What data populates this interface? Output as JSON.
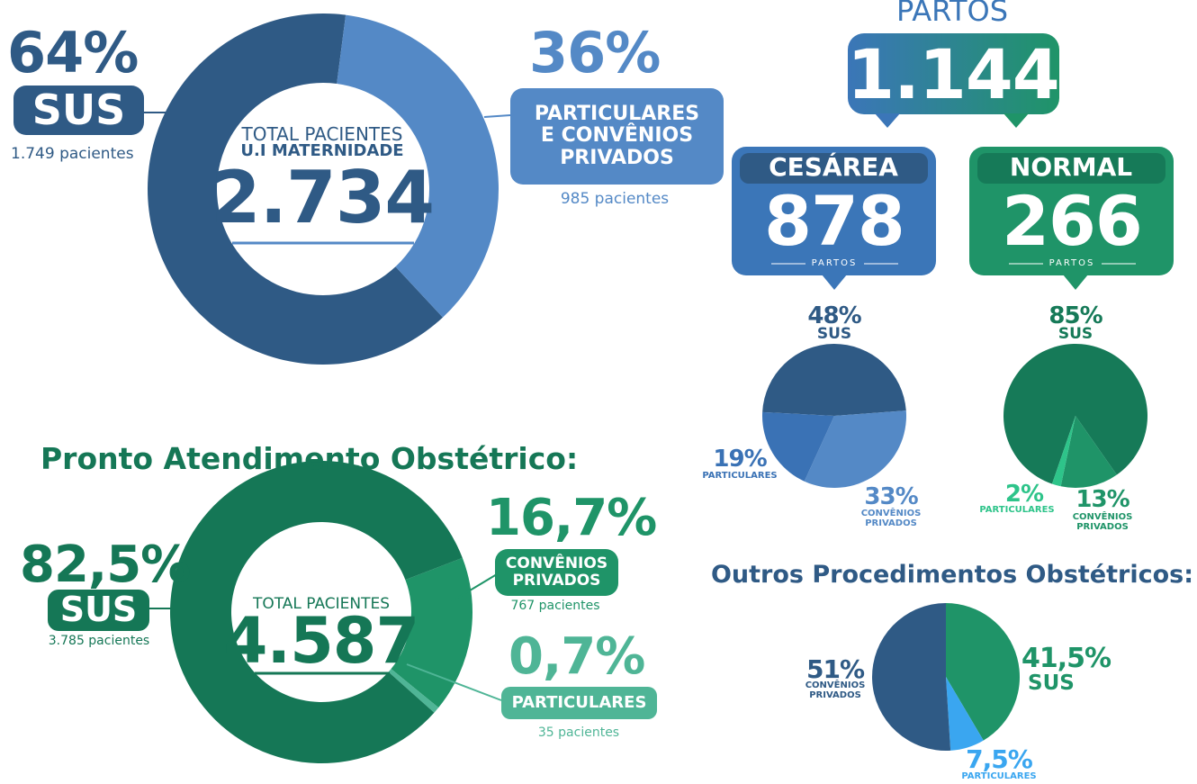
{
  "partos": {
    "title": "PARTOS",
    "total": "1.144",
    "cesarea": {
      "label": "CESÁREA",
      "value": "878",
      "unit": "PARTOS"
    },
    "normal": {
      "label": "NORMAL",
      "value": "266",
      "unit": "PARTOS"
    }
  },
  "chart_data": [
    {
      "type": "donut",
      "center_title": "TOTAL PACIENTES",
      "center_subtitle": "U.I MATERNIDADE",
      "total": "2.734",
      "categories": [
        "SUS",
        "PARTICULARES E CONVÊNIOS PRIVADOS"
      ],
      "values": [
        64,
        36
      ],
      "value_labels": [
        "64%",
        "36%"
      ],
      "patient_labels": [
        "1.749 pacientes",
        "985 pacientes"
      ],
      "colors": [
        "#2f5a85",
        "#5489c6"
      ]
    },
    {
      "type": "pie",
      "categories": [
        "SUS",
        "CONVÊNIOS PRIVADOS",
        "PARTICULARES"
      ],
      "values": [
        48,
        33,
        19
      ],
      "value_labels": [
        "48%",
        "33%",
        "19%"
      ],
      "colors": [
        "#2f5a85",
        "#5489c6",
        "#3a72b5"
      ]
    },
    {
      "type": "pie",
      "categories": [
        "SUS",
        "CONVÊNIOS PRIVADOS",
        "PARTICULARES"
      ],
      "values": [
        85,
        13,
        2
      ],
      "value_labels": [
        "85%",
        "13%",
        "2%"
      ],
      "colors": [
        "#167a58",
        "#1f9468",
        "#2ec48a"
      ]
    },
    {
      "type": "donut",
      "title": "Pronto Atendimento Obstétrico:",
      "center_title": "TOTAL PACIENTES",
      "total": "4.587",
      "categories": [
        "CONVÊNIOS PRIVADOS",
        "PARTICULARES",
        "SUS"
      ],
      "values": [
        16.7,
        0.7,
        82.5
      ],
      "value_labels": [
        "16,7%",
        "0,7%",
        "82,5%"
      ],
      "patient_labels": [
        "767 pacientes",
        "35 pacientes",
        "3.785 pacientes"
      ],
      "colors": [
        "#1f9468",
        "#4fb596",
        "#157756"
      ]
    },
    {
      "type": "pie",
      "title": "Outros Procedimentos Obstétricos:",
      "categories": [
        "SUS",
        "PARTICULARES",
        "CONVÊNIOS PRIVADOS"
      ],
      "values": [
        41.5,
        7.5,
        51
      ],
      "value_labels": [
        "41,5%",
        "7,5%",
        "51%"
      ],
      "colors": [
        "#1f9468",
        "#3aa6f0",
        "#2f5a85"
      ]
    }
  ]
}
